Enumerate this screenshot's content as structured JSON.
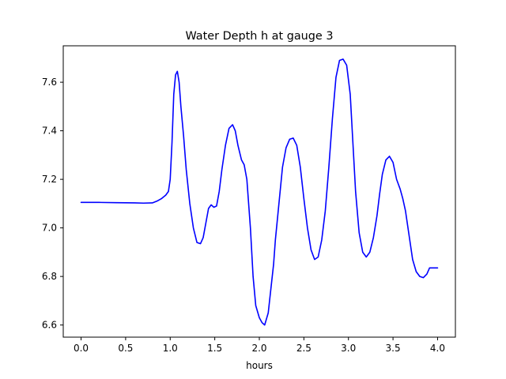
{
  "chart_data": {
    "type": "line",
    "title": "Water Depth h at gauge 3",
    "xlabel": "hours",
    "ylabel": "",
    "xlim": [
      -0.2,
      4.2
    ],
    "ylim": [
      6.55,
      7.75
    ],
    "xticks": [
      0.0,
      0.5,
      1.0,
      1.5,
      2.0,
      2.5,
      3.0,
      3.5,
      4.0
    ],
    "xtick_labels": [
      "0.0",
      "0.5",
      "1.0",
      "1.5",
      "2.0",
      "2.5",
      "3.0",
      "3.5",
      "4.0"
    ],
    "yticks": [
      6.6,
      6.8,
      7.0,
      7.2,
      7.4,
      7.6
    ],
    "ytick_labels": [
      "6.6",
      "6.8",
      "7.0",
      "7.2",
      "7.4",
      "7.6"
    ],
    "grid": false,
    "legend": "none",
    "series": [
      {
        "color": "#0000ff",
        "x": [
          0.0,
          0.2,
          0.4,
          0.6,
          0.7,
          0.8,
          0.85,
          0.9,
          0.95,
          0.98,
          1.0,
          1.02,
          1.04,
          1.06,
          1.08,
          1.1,
          1.12,
          1.15,
          1.18,
          1.22,
          1.26,
          1.3,
          1.34,
          1.37,
          1.4,
          1.43,
          1.46,
          1.49,
          1.52,
          1.55,
          1.58,
          1.62,
          1.66,
          1.7,
          1.73,
          1.76,
          1.8,
          1.83,
          1.86,
          1.9,
          1.93,
          1.96,
          2.0,
          2.03,
          2.06,
          2.1,
          2.13,
          2.16,
          2.18,
          2.22,
          2.26,
          2.3,
          2.34,
          2.38,
          2.42,
          2.46,
          2.5,
          2.54,
          2.58,
          2.62,
          2.66,
          2.7,
          2.74,
          2.78,
          2.82,
          2.86,
          2.9,
          2.94,
          2.98,
          3.02,
          3.05,
          3.08,
          3.12,
          3.16,
          3.2,
          3.24,
          3.28,
          3.32,
          3.35,
          3.38,
          3.42,
          3.46,
          3.5,
          3.54,
          3.58,
          3.61,
          3.64,
          3.68,
          3.72,
          3.76,
          3.8,
          3.84,
          3.88,
          3.91,
          3.94,
          3.97,
          4.0
        ],
        "y": [
          7.105,
          7.105,
          7.104,
          7.103,
          7.102,
          7.103,
          7.11,
          7.12,
          7.135,
          7.15,
          7.2,
          7.35,
          7.55,
          7.63,
          7.645,
          7.6,
          7.5,
          7.38,
          7.24,
          7.1,
          7.0,
          6.94,
          6.935,
          6.96,
          7.02,
          7.08,
          7.095,
          7.085,
          7.09,
          7.15,
          7.24,
          7.34,
          7.41,
          7.425,
          7.4,
          7.34,
          7.28,
          7.26,
          7.2,
          7.0,
          6.8,
          6.68,
          6.63,
          6.61,
          6.6,
          6.65,
          6.75,
          6.85,
          6.95,
          7.1,
          7.25,
          7.33,
          7.365,
          7.37,
          7.34,
          7.25,
          7.12,
          7.0,
          6.91,
          6.87,
          6.88,
          6.95,
          7.07,
          7.25,
          7.45,
          7.62,
          7.69,
          7.695,
          7.67,
          7.55,
          7.35,
          7.15,
          6.98,
          6.9,
          6.88,
          6.9,
          6.96,
          7.05,
          7.14,
          7.22,
          7.28,
          7.295,
          7.27,
          7.2,
          7.16,
          7.12,
          7.07,
          6.97,
          6.87,
          6.82,
          6.8,
          6.795,
          6.81,
          6.835,
          6.835,
          6.835,
          6.835
        ]
      }
    ]
  }
}
